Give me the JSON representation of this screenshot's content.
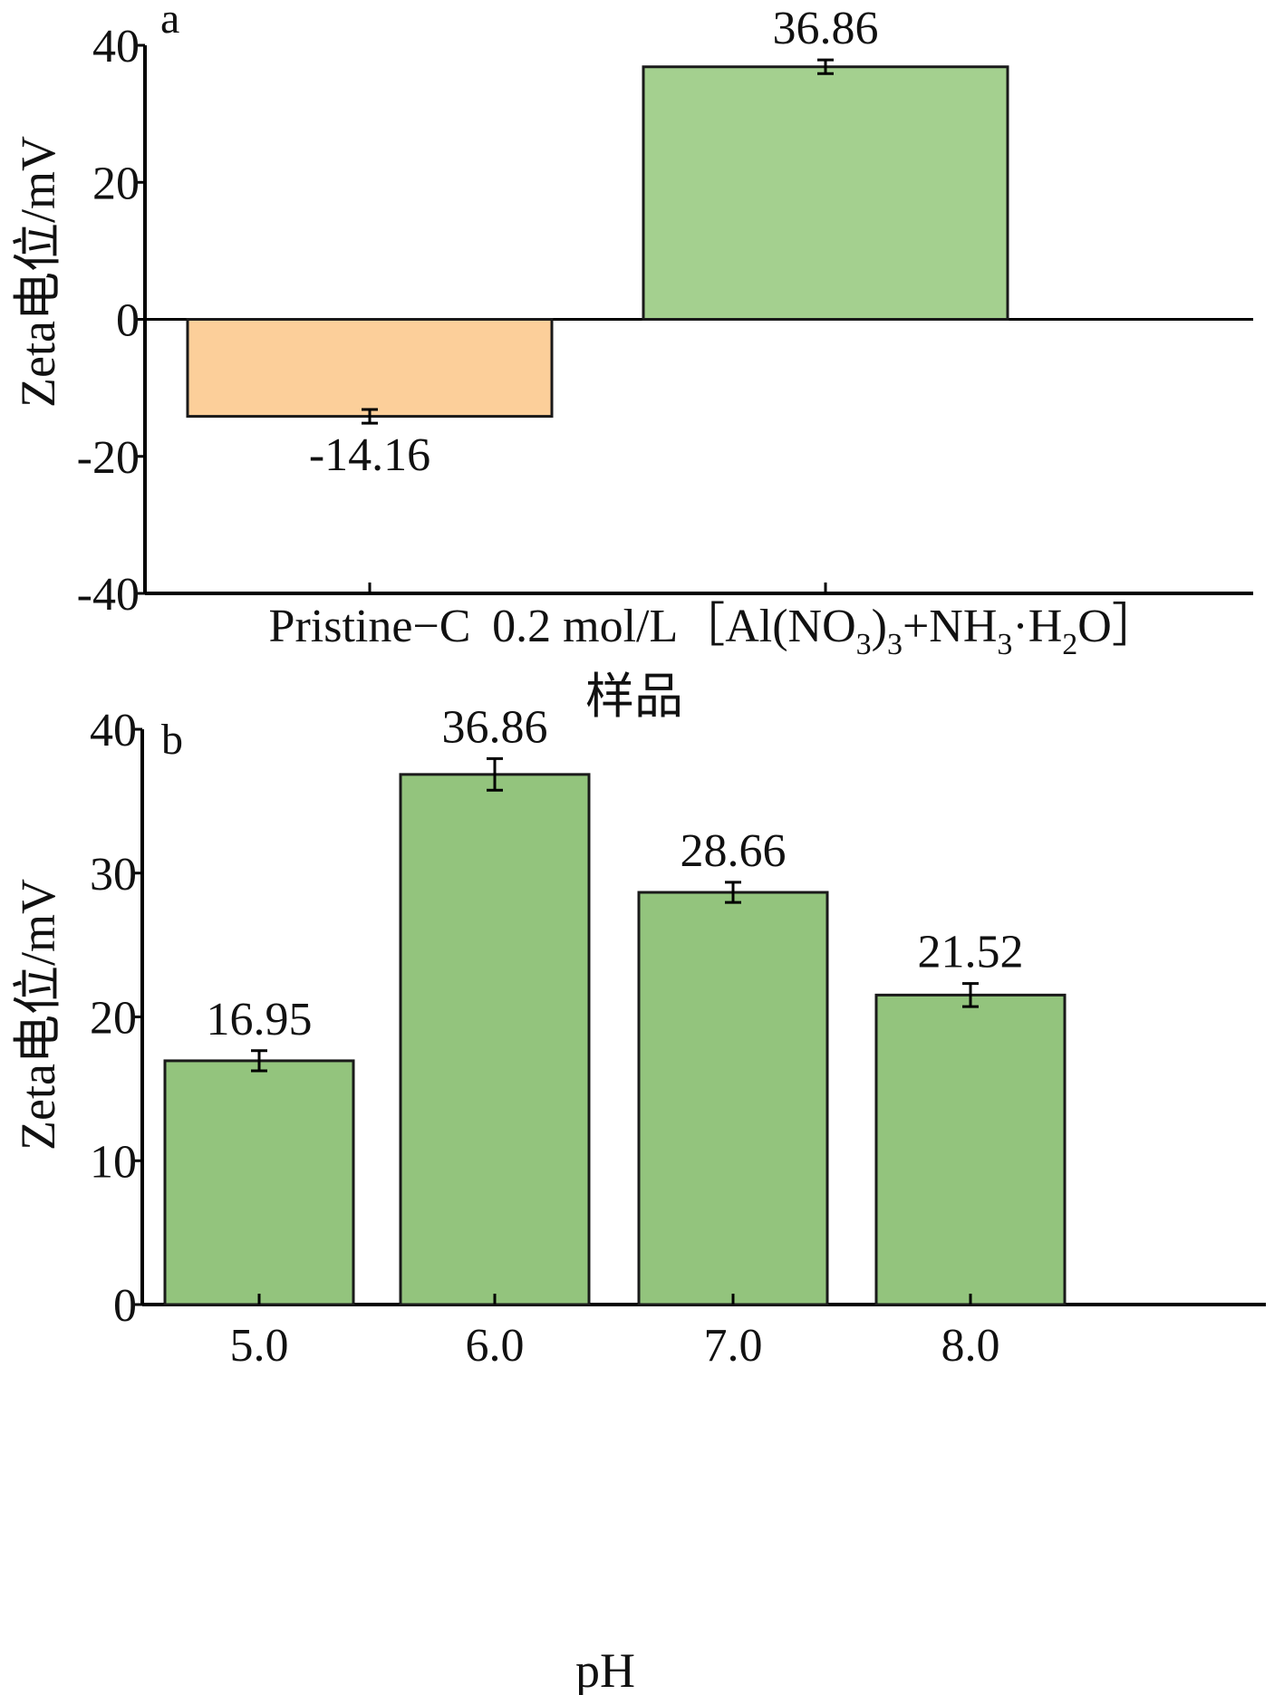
{
  "chart_data": [
    {
      "panel": "a",
      "type": "bar",
      "categories": [
        "Pristine−C",
        "0.2 mol/L［Al(NO3)3+NH3·H2O］"
      ],
      "category_labels": [
        {
          "text": "Pristine−C"
        },
        {
          "parts": [
            {
              "t": "0.2 mol/L［Al(NO"
            },
            {
              "t": "3",
              "sub": true
            },
            {
              "t": ")"
            },
            {
              "t": "3",
              "sub": true
            },
            {
              "t": "+NH"
            },
            {
              "t": "3",
              "sub": true
            },
            {
              "t": "·H"
            },
            {
              "t": "2",
              "sub": true
            },
            {
              "t": "O］"
            }
          ]
        }
      ],
      "values": [
        -14.16,
        36.86
      ],
      "errors": [
        1.0,
        1.0
      ],
      "value_labels": [
        "-14.16",
        "36.86"
      ],
      "colors": [
        "#fccf9a",
        "#a4d08f"
      ],
      "xlabel": "样品",
      "ylabel": "Zeta电位/mV",
      "ylim": [
        -40,
        40
      ],
      "yticks": [
        "40",
        "20",
        "0",
        "-20",
        "-40"
      ],
      "grid": false
    },
    {
      "panel": "b",
      "type": "bar",
      "categories": [
        "5.0",
        "6.0",
        "7.0",
        "8.0"
      ],
      "values": [
        16.95,
        36.86,
        28.66,
        21.52
      ],
      "errors": [
        0.7,
        1.1,
        0.7,
        0.8
      ],
      "value_labels": [
        "16.95",
        "36.86",
        "28.66",
        "21.52"
      ],
      "colors": [
        "#93c47d",
        "#93c47d",
        "#93c47d",
        "#93c47d"
      ],
      "xlabel": "pH",
      "ylabel": "Zeta电位/mV",
      "ylim": [
        0,
        40
      ],
      "yticks": [
        "40",
        "30",
        "20",
        "10",
        "0"
      ],
      "grid": false
    }
  ]
}
